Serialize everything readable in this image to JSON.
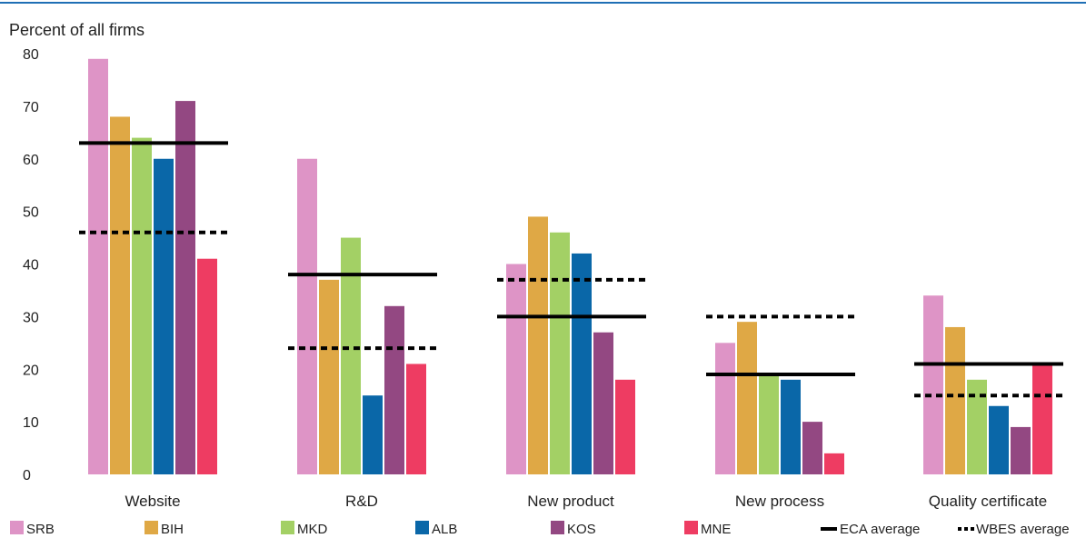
{
  "chart_data": {
    "type": "bar",
    "ylabel": "Percent of all firms",
    "ylim": [
      0,
      80
    ],
    "yticks": [
      0,
      10,
      20,
      30,
      40,
      50,
      60,
      70,
      80
    ],
    "categories": [
      "Website",
      "R&D",
      "New product",
      "New process",
      "Quality certificate"
    ],
    "series": [
      {
        "name": "SRB",
        "color": "#de94c6",
        "values": [
          79,
          60,
          40,
          25,
          34
        ]
      },
      {
        "name": "BIH",
        "color": "#dfa845",
        "values": [
          68,
          37,
          49,
          29,
          28
        ]
      },
      {
        "name": "MKD",
        "color": "#a3d065",
        "values": [
          64,
          45,
          46,
          19,
          18
        ]
      },
      {
        "name": "ALB",
        "color": "#0a67a8",
        "values": [
          60,
          15,
          42,
          18,
          13
        ]
      },
      {
        "name": "KOS",
        "color": "#934882",
        "values": [
          71,
          32,
          27,
          10,
          9
        ]
      },
      {
        "name": "MNE",
        "color": "#ee3c62",
        "values": [
          41,
          21,
          18,
          4,
          21
        ]
      }
    ],
    "reference_lines": [
      {
        "name": "ECA average",
        "style": "solid",
        "values": [
          63,
          38,
          30,
          19,
          21
        ]
      },
      {
        "name": "WBES average",
        "style": "dotted",
        "values": [
          46,
          24,
          37,
          30,
          15
        ]
      }
    ],
    "legend_position": "bottom",
    "grid": false,
    "accent_color": "#1f6fb5"
  }
}
